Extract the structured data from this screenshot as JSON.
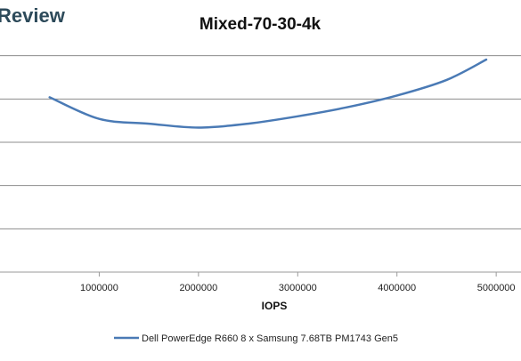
{
  "watermark": {
    "text": "Review"
  },
  "chart_data": {
    "type": "line",
    "title": "Mixed-70-30-4k",
    "xlabel": "IOPS",
    "ylabel": "",
    "xlim": [
      0,
      5250000
    ],
    "ylim": [
      0,
      0.6
    ],
    "x_ticks": [
      1000000,
      2000000,
      3000000,
      4000000,
      5000000
    ],
    "x_tick_labels": [
      "1000000",
      "2000000",
      "3000000",
      "4000000",
      "5000000"
    ],
    "y_gridlines": [
      0.1,
      0.2,
      0.3,
      0.4,
      0.5
    ],
    "grid": true,
    "legend_position": "bottom",
    "series": [
      {
        "name": "Dell PowerEdge R660 8 x Samsung 7.68TB PM1743 Gen5",
        "color": "#4a7ab5",
        "x": [
          500000,
          1000000,
          1500000,
          2000000,
          2500000,
          3000000,
          3500000,
          4000000,
          4500000,
          4900000
        ],
        "y": [
          0.404,
          0.354,
          0.343,
          0.334,
          0.343,
          0.36,
          0.381,
          0.408,
          0.444,
          0.491
        ]
      }
    ]
  }
}
